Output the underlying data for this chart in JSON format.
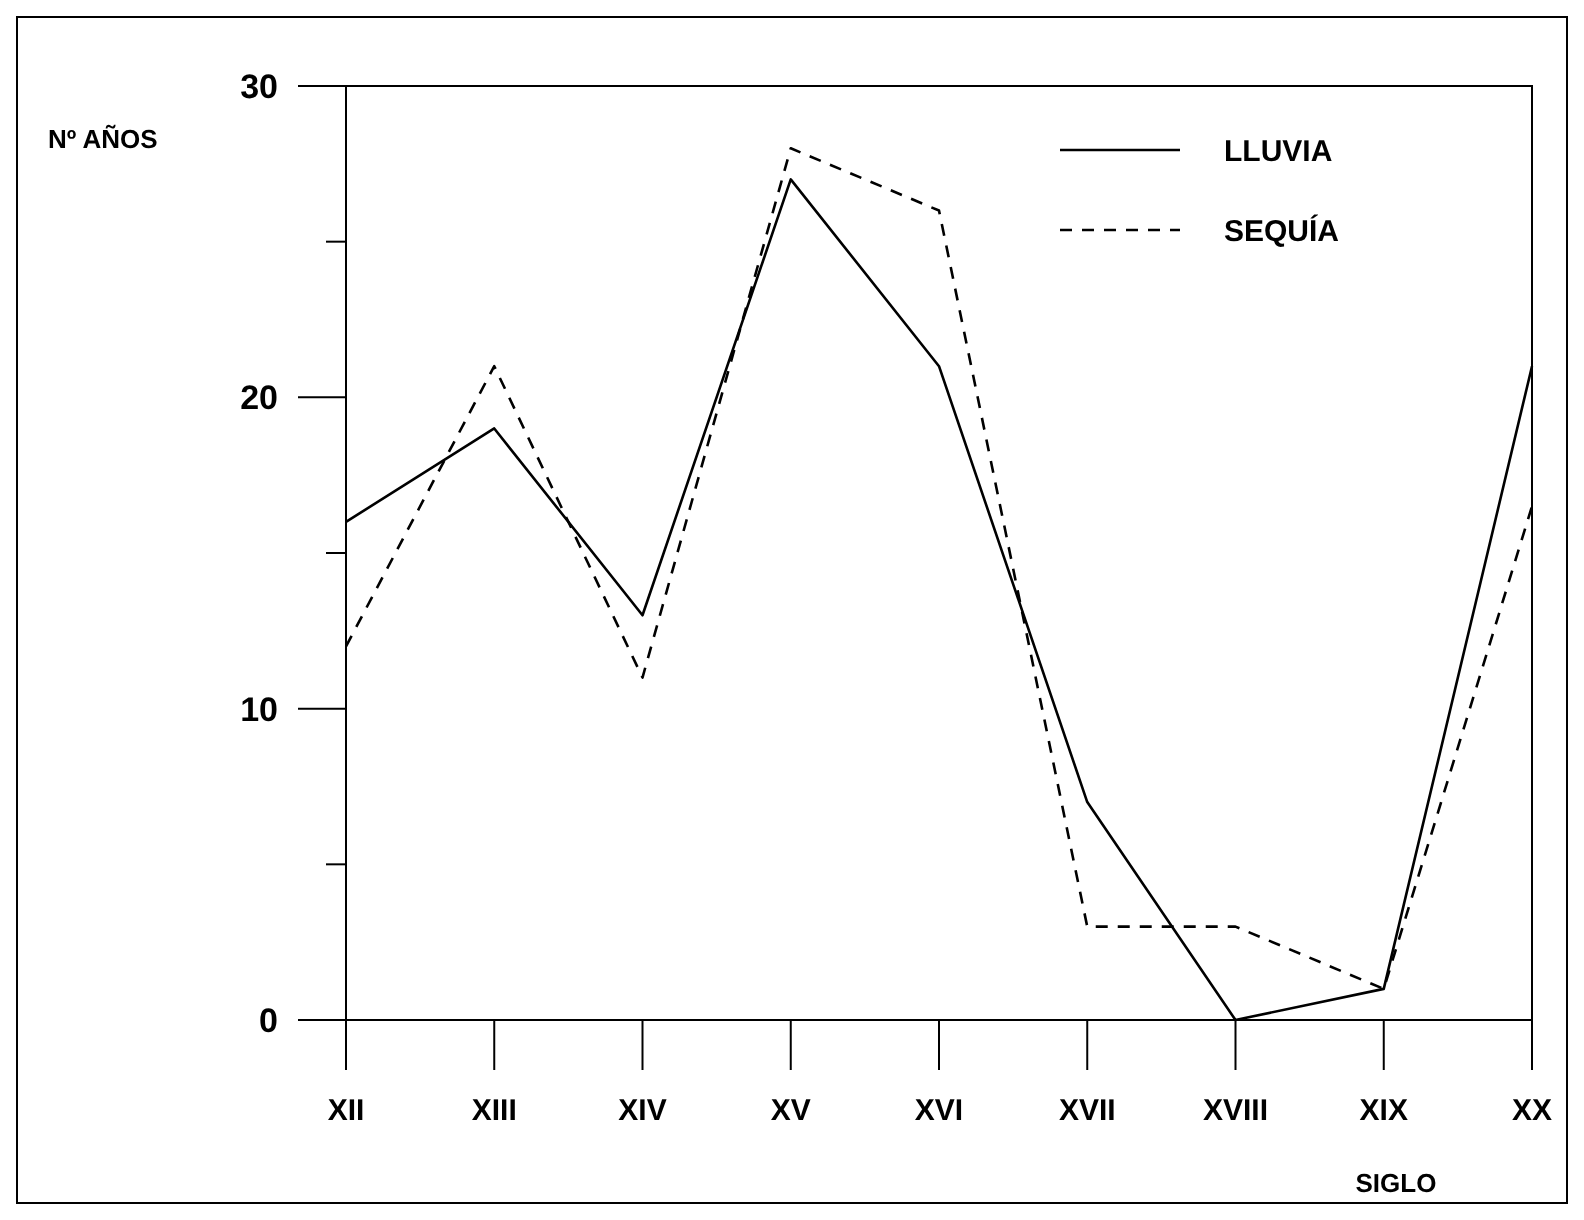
{
  "chart_data": {
    "type": "line",
    "xlabel": "SIGLO",
    "ylabel": "Nº AÑOS",
    "categories": [
      "XII",
      "XIII",
      "XIV",
      "XV",
      "XVI",
      "XVII",
      "XVIII",
      "XIX",
      "XX"
    ],
    "series": [
      {
        "name": "LLUVIA",
        "color": "#000000",
        "line_style": "solid",
        "values": [
          16,
          19,
          13,
          27,
          21,
          7,
          0,
          1,
          21
        ]
      },
      {
        "name": "SEQUÍA",
        "color": "#000000",
        "line_style": "dashed",
        "values": [
          12,
          21,
          11,
          28,
          26,
          3,
          3,
          1,
          16.5
        ]
      }
    ],
    "ylim": [
      0,
      30
    ],
    "yticks": [
      0,
      {
        "value": 5,
        "label": null
      },
      10,
      {
        "value": 15,
        "label": null
      },
      20,
      {
        "value": 25,
        "label": null
      },
      30
    ],
    "grid": false,
    "legend": "top right",
    "marker": "none"
  }
}
